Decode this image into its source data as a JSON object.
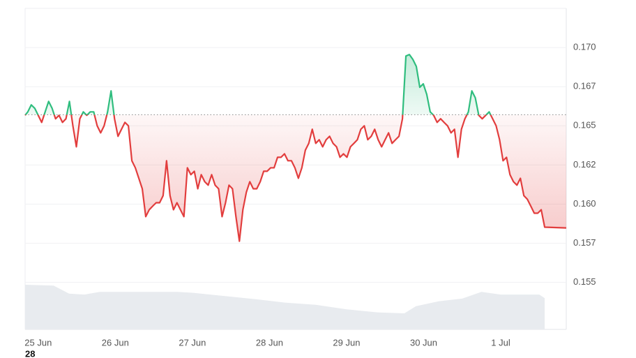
{
  "chart_data": {
    "type": "baseline-area",
    "x": [
      -0.17,
      -0.135,
      -0.09,
      -0.045,
      0,
      0.045,
      0.09,
      0.135,
      0.18,
      0.225,
      0.27,
      0.315,
      0.36,
      0.405,
      0.45,
      0.495,
      0.54,
      0.585,
      0.63,
      0.675,
      0.72,
      0.765,
      0.81,
      0.855,
      0.9,
      0.945,
      0.99,
      1.035,
      1.08,
      1.125,
      1.17,
      1.215,
      1.26,
      1.305,
      1.35,
      1.395,
      1.44,
      1.485,
      1.53,
      1.575,
      1.62,
      1.665,
      1.71,
      1.755,
      1.8,
      1.845,
      1.89,
      1.935,
      1.98,
      2.025,
      2.07,
      2.115,
      2.16,
      2.205,
      2.25,
      2.295,
      2.34,
      2.385,
      2.43,
      2.475,
      2.52,
      2.565,
      2.61,
      2.655,
      2.7,
      2.745,
      2.79,
      2.835,
      2.88,
      2.925,
      2.97,
      3.015,
      3.06,
      3.105,
      3.15,
      3.195,
      3.24,
      3.285,
      3.33,
      3.375,
      3.42,
      3.465,
      3.51,
      3.555,
      3.6,
      3.645,
      3.69,
      3.735,
      3.78,
      3.825,
      3.87,
      3.915,
      3.96,
      4.005,
      4.05,
      4.095,
      4.14,
      4.185,
      4.23,
      4.275,
      4.32,
      4.365,
      4.41,
      4.455,
      4.5,
      4.545,
      4.59,
      4.635,
      4.68,
      4.725,
      4.77,
      4.815,
      4.86,
      4.905,
      4.95,
      4.995,
      5.04,
      5.085,
      5.13,
      5.175,
      5.22,
      5.265,
      5.31,
      5.355,
      5.4,
      5.445,
      5.49,
      5.535,
      5.58,
      5.625,
      5.67,
      5.715,
      5.76,
      5.805,
      5.85,
      5.895,
      5.94,
      5.985,
      6.03,
      6.075,
      6.12,
      6.165,
      6.21,
      6.255,
      6.3,
      6.345,
      6.39,
      6.435,
      6.48,
      6.525,
      6.57,
      6.85
    ],
    "values": [
      0.16567,
      0.16589,
      0.16634,
      0.16612,
      0.16567,
      0.16522,
      0.16589,
      0.16656,
      0.16612,
      0.16545,
      0.16567,
      0.16522,
      0.16545,
      0.16656,
      0.165,
      0.16366,
      0.16545,
      0.16589,
      0.16567,
      0.16589,
      0.16589,
      0.165,
      0.16455,
      0.165,
      0.16589,
      0.16723,
      0.16545,
      0.16433,
      0.16478,
      0.16522,
      0.165,
      0.16277,
      0.16232,
      0.16165,
      0.16098,
      0.1592,
      0.15964,
      0.15987,
      0.16009,
      0.16009,
      0.16054,
      0.16277,
      0.16054,
      0.15964,
      0.16009,
      0.15964,
      0.1592,
      0.16232,
      0.16188,
      0.1621,
      0.16098,
      0.16188,
      0.16143,
      0.16121,
      0.16188,
      0.16121,
      0.16098,
      0.1592,
      0.16009,
      0.16121,
      0.16098,
      0.1592,
      0.15763,
      0.15964,
      0.16076,
      0.16143,
      0.16098,
      0.16098,
      0.16143,
      0.1621,
      0.1621,
      0.16232,
      0.16232,
      0.16299,
      0.16299,
      0.16321,
      0.16277,
      0.16277,
      0.16232,
      0.16165,
      0.16232,
      0.16344,
      0.16388,
      0.16478,
      0.16388,
      0.16411,
      0.16366,
      0.16411,
      0.16433,
      0.16388,
      0.16366,
      0.16299,
      0.16321,
      0.16299,
      0.16366,
      0.16388,
      0.16411,
      0.16478,
      0.165,
      0.16411,
      0.16433,
      0.16478,
      0.16411,
      0.16366,
      0.16411,
      0.16455,
      0.16388,
      0.16411,
      0.16433,
      0.16545,
      0.16946,
      0.16955,
      0.16924,
      0.16879,
      0.16746,
      0.16768,
      0.16701,
      0.16589,
      0.16567,
      0.16522,
      0.16545,
      0.16522,
      0.165,
      0.16455,
      0.16478,
      0.16299,
      0.16478,
      0.16545,
      0.16589,
      0.16723,
      0.16679,
      0.16567,
      0.16545,
      0.16567,
      0.16589,
      0.16545,
      0.165,
      0.16411,
      0.16277,
      0.16299,
      0.16188,
      0.16143,
      0.16121,
      0.16165,
      0.16054,
      0.16031,
      0.15987,
      0.15942,
      0.15942,
      0.15964,
      0.15853,
      0.15848
    ],
    "baseline": 0.16571,
    "colors": {
      "above": "#2fbd7e",
      "below": "#e23d3d",
      "volume": "#e8ebef"
    },
    "xlim": [
      -0.17,
      6.85
    ],
    "xticks": [
      {
        "value": 0,
        "label": "25 Jun"
      },
      {
        "value": 1,
        "label": "26 Jun"
      },
      {
        "value": 2,
        "label": "27 Jun"
      },
      {
        "value": 3,
        "label": "28 Jun"
      },
      {
        "value": 4,
        "label": "29 Jun"
      },
      {
        "value": 5,
        "label": "30 Jun"
      },
      {
        "value": 6,
        "label": "1 Jul"
      }
    ],
    "ylim": [
      0.152,
      0.1725
    ],
    "yticks": [
      {
        "value": 0.155,
        "label": "0.155"
      },
      {
        "value": 0.1575,
        "label": "0.157"
      },
      {
        "value": 0.16,
        "label": "0.160"
      },
      {
        "value": 0.1625,
        "label": "0.162"
      },
      {
        "value": 0.165,
        "label": "0.165"
      },
      {
        "value": 0.1675,
        "label": "0.167"
      },
      {
        "value": 0.17,
        "label": "0.170"
      }
    ],
    "grid": true,
    "volume": {
      "x": [
        -0.17,
        0.2,
        0.4,
        0.6,
        0.8,
        1.2,
        1.8,
        2.0,
        2.4,
        2.8,
        3.2,
        3.6,
        4.0,
        4.4,
        4.75,
        4.9,
        5.2,
        5.5,
        5.75,
        6.0,
        6.5,
        6.57
      ],
      "values": [
        100,
        98,
        80,
        78,
        84,
        84,
        84,
        82,
        75,
        68,
        60,
        55,
        45,
        38,
        36,
        52,
        63,
        69,
        84,
        78,
        78,
        70
      ],
      "ylim": [
        0,
        100
      ]
    },
    "footnote": "28"
  }
}
